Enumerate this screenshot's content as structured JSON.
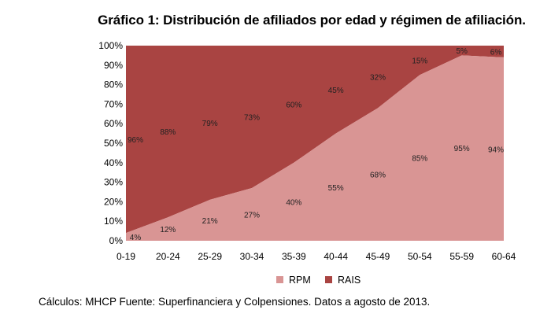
{
  "chart_data": {
    "type": "area",
    "stacked": "percent",
    "title": "Gráfico 1: Distribución de afiliados por edad y régimen de afiliación.",
    "xlabel": "",
    "ylabel": "",
    "categories": [
      "0-19",
      "20-24",
      "25-29",
      "30-34",
      "35-39",
      "40-44",
      "45-49",
      "50-54",
      "55-59",
      "60-64"
    ],
    "ylim": [
      0,
      100
    ],
    "yticks": [
      "0%",
      "10%",
      "20%",
      "30%",
      "40%",
      "50%",
      "60%",
      "70%",
      "80%",
      "90%",
      "100%"
    ],
    "grid": false,
    "legend_position": "bottom",
    "series": [
      {
        "name": "RPM",
        "color": "#d99594",
        "values": [
          4,
          12,
          21,
          27,
          40,
          55,
          68,
          85,
          95,
          94
        ],
        "labels": [
          "4%",
          "12%",
          "21%",
          "27%",
          "40%",
          "55%",
          "68%",
          "85%",
          "95%",
          "94%"
        ]
      },
      {
        "name": "RAIS",
        "color": "#a94442",
        "values": [
          96,
          88,
          79,
          73,
          60,
          45,
          32,
          15,
          5,
          6
        ],
        "labels": [
          "96%",
          "88%",
          "79%",
          "73%",
          "60%",
          "45%",
          "32%",
          "15%",
          "5%",
          "6%"
        ]
      }
    ]
  },
  "footnote": "Cálculos: MHCP Fuente: Superfinanciera y Colpensiones. Datos a agosto de 2013."
}
